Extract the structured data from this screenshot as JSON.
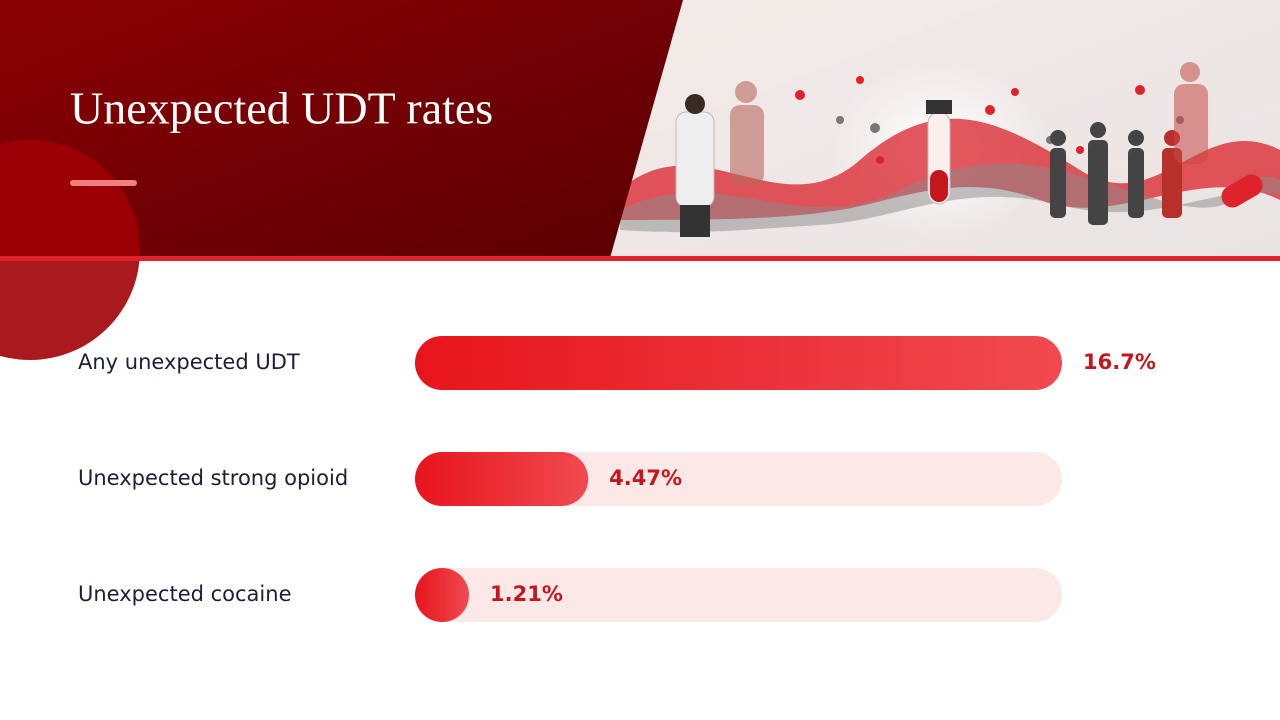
{
  "chart_data": {
    "type": "bar",
    "orientation": "horizontal",
    "title": "Unexpected UDT rates",
    "categories": [
      "Any unexpected UDT",
      "Unexpected strong opioid",
      "Unexpected cocaine"
    ],
    "values": [
      16.7,
      4.47,
      1.21
    ],
    "value_labels": [
      "16.7%",
      "4.47%",
      "1.21%"
    ],
    "xlim": [
      0,
      16.7
    ],
    "color": "#e8141c",
    "track_color": "#fde8e8"
  }
}
